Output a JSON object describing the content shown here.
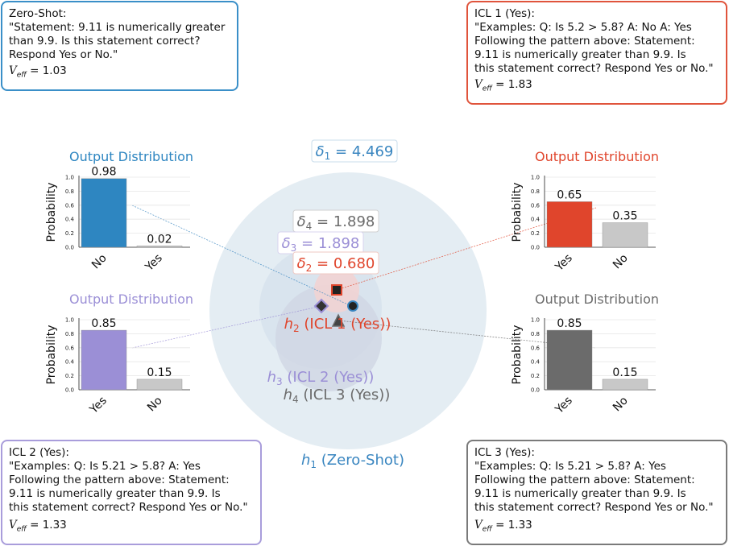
{
  "colors": {
    "zero_shot": "#3a86c0",
    "icl1": "#e0452c",
    "icl2": "#9b8fd6",
    "icl3": "#6b6b6b",
    "gray_bar": "#c8c8c8",
    "outer_circle": "#e4edf3",
    "mid_circle": "#d6e2ec",
    "inner_circle": "#cfd5e3",
    "red_halo": "#f1d3d3"
  },
  "prompts": {
    "zero_shot": {
      "title": "Zero-Shot:",
      "text": "\"Statement: 9.11 is numerically greater\nthan 9.9. Is this statement correct?\nRespond Yes or No.\"",
      "veff_symbol": "V",
      "veff_sub": "eff",
      "veff_value": "= 1.03"
    },
    "icl1": {
      "title": "ICL 1 (Yes):",
      "text": "\"Examples: Q: Is 5.2 > 5.8? A: No A: Yes\nFollowing the pattern above: Statement:\n9.11 is numerically greater than 9.9. Is\nthis statement correct? Respond Yes or No.\"",
      "veff_symbol": "V",
      "veff_sub": "eff",
      "veff_value": "= 1.83"
    },
    "icl2": {
      "title": "ICL 2 (Yes):",
      "text": "\"Examples: Q: Is 5.21 > 5.8? A: Yes\nFollowing the pattern above: Statement:\n9.11 is numerically greater than 9.9. Is\nthis statement correct? Respond Yes or No.\"",
      "veff_symbol": "V",
      "veff_sub": "eff",
      "veff_value": "= 1.33"
    },
    "icl3": {
      "title": "ICL 3 (Yes):",
      "text": "\"Examples: Q: Is 5.21 > 5.8? A: Yes\nFollowing the pattern above: Statement:\n9.11 is numerically greater than 9.9. Is\nthis statement correct? Respond Yes or No.\"",
      "veff_symbol": "V",
      "veff_sub": "eff",
      "veff_value": "= 1.33"
    }
  },
  "center": {
    "h1": {
      "sym": "h",
      "sub": "1",
      "label": " (Zero-Shot)"
    },
    "h2": {
      "sym": "h",
      "sub": "2",
      "label": " (ICL 1 (Yes))"
    },
    "h3": {
      "sym": "h",
      "sub": "3",
      "label": " (ICL 2 (Yes))"
    },
    "h4": {
      "sym": "h",
      "sub": "4",
      "label": " (ICL 3 (Yes))"
    },
    "d1": {
      "sym": "δ",
      "sub": "1",
      "value": " = 4.469"
    },
    "d2": {
      "sym": "δ",
      "sub": "2",
      "value": " = 0.680"
    },
    "d3": {
      "sym": "δ",
      "sub": "3",
      "value": " = 1.898"
    },
    "d4": {
      "sym": "δ",
      "sub": "4",
      "value": " = 1.898"
    }
  },
  "chart_data": [
    {
      "type": "bar",
      "id": "zero_shot",
      "title": "Output Distribution",
      "ylabel": "Probability",
      "categories": [
        "No",
        "Yes"
      ],
      "values": [
        0.98,
        0.02
      ],
      "labels": [
        "0.98",
        "0.02"
      ],
      "ylim": [
        0,
        1.0
      ],
      "yticks": [
        "0.0",
        "0.2",
        "0.4",
        "0.6",
        "0.8",
        "1.0"
      ],
      "bar_colors": [
        "#2e86c1",
        "#c8c8c8"
      ],
      "title_color": "#2e86c1"
    },
    {
      "type": "bar",
      "id": "icl1",
      "title": "Output Distribution",
      "ylabel": "Probability",
      "categories": [
        "Yes",
        "No"
      ],
      "values": [
        0.65,
        0.35
      ],
      "labels": [
        "0.65",
        "0.35"
      ],
      "ylim": [
        0,
        1.0
      ],
      "yticks": [
        "0.0",
        "0.2",
        "0.4",
        "0.6",
        "0.8",
        "1.0"
      ],
      "bar_colors": [
        "#e0452c",
        "#c8c8c8"
      ],
      "title_color": "#e0452c"
    },
    {
      "type": "bar",
      "id": "icl2",
      "title": "Output Distribution",
      "ylabel": "Probability",
      "categories": [
        "Yes",
        "No"
      ],
      "values": [
        0.85,
        0.15
      ],
      "labels": [
        "0.85",
        "0.15"
      ],
      "ylim": [
        0,
        1.0
      ],
      "yticks": [
        "0.0",
        "0.2",
        "0.4",
        "0.6",
        "0.8",
        "1.0"
      ],
      "bar_colors": [
        "#9b8fd6",
        "#c8c8c8"
      ],
      "title_color": "#9b8fd6"
    },
    {
      "type": "bar",
      "id": "icl3",
      "title": "Output Distribution",
      "ylabel": "Probability",
      "categories": [
        "Yes",
        "No"
      ],
      "values": [
        0.85,
        0.15
      ],
      "labels": [
        "0.85",
        "0.15"
      ],
      "ylim": [
        0,
        1.0
      ],
      "yticks": [
        "0.0",
        "0.2",
        "0.4",
        "0.6",
        "0.8",
        "1.0"
      ],
      "bar_colors": [
        "#6b6b6b",
        "#c8c8c8"
      ],
      "title_color": "#6b6b6b"
    }
  ]
}
